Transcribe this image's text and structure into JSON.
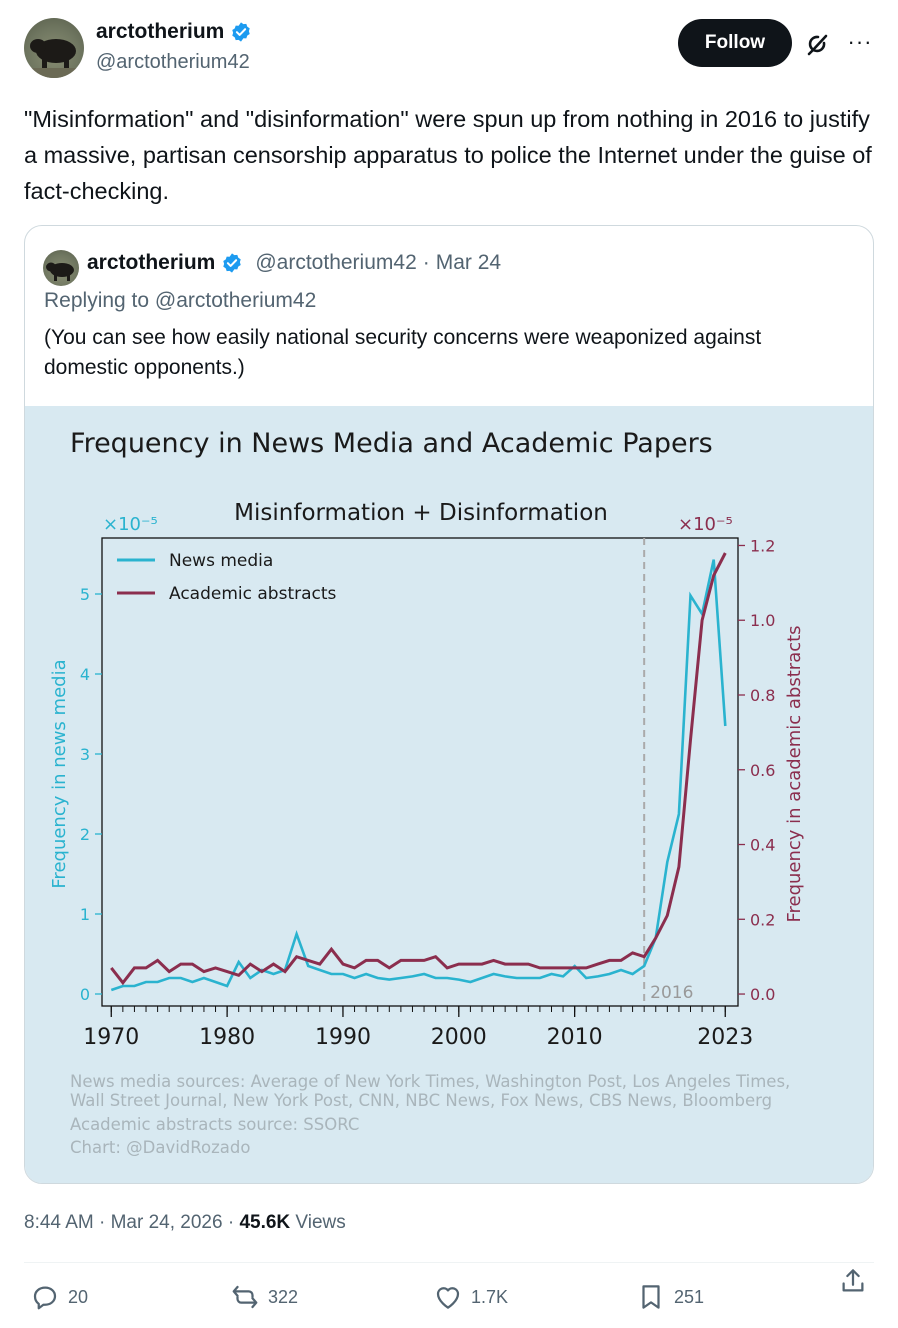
{
  "author": {
    "display_name": "arctotherium",
    "handle": "@arctotherium42"
  },
  "follow_label": "Follow",
  "more_label": "···",
  "tweet_text": "\"Misinformation\" and \"disinformation\" were spun up from nothing in 2016 to justify a massive, partisan censorship apparatus to police the Internet under the guise of fact-checking.",
  "quote": {
    "display_name": "arctotherium",
    "handle": "@arctotherium42",
    "sep": "·",
    "date": "Mar 24",
    "replying_to": "Replying to @arctotherium42",
    "text": "(You can see how easily national security concerns were weaponized against domestic opponents.)"
  },
  "chart_data": {
    "type": "line",
    "title": "Frequency in News Media and Academic Papers",
    "subtitle": "Misinformation + Disinformation",
    "left_multiplier": "×10⁻⁵",
    "right_multiplier": "×10⁻⁵",
    "ylabel_left": "Frequency in news media",
    "ylabel_right": "Frequency in academic abstracts",
    "ylim_left": [
      -0.15,
      5.7
    ],
    "ylim_right": [
      -0.032,
      1.22
    ],
    "xlim": [
      1969.2,
      2024.1
    ],
    "yticks_left": [
      0,
      1,
      2,
      3,
      4,
      5
    ],
    "yticks_right": [
      "0.0",
      "0.2",
      "0.4",
      "0.6",
      "0.8",
      "1.0",
      "1.2"
    ],
    "xticks": [
      1970,
      1980,
      1990,
      2000,
      2010,
      2023
    ],
    "legend": [
      "News media",
      "Academic abstracts"
    ],
    "legend_position": "top-left",
    "vline": {
      "x": 2016,
      "label": "2016"
    },
    "colors": {
      "news": "#2ab3cf",
      "academic": "#8b2e4e",
      "background": "#d8e9f1"
    },
    "x": [
      1970,
      1971,
      1972,
      1973,
      1974,
      1975,
      1976,
      1977,
      1978,
      1979,
      1980,
      1981,
      1982,
      1983,
      1984,
      1985,
      1986,
      1987,
      1988,
      1989,
      1990,
      1991,
      1992,
      1993,
      1994,
      1995,
      1996,
      1997,
      1998,
      1999,
      2000,
      2001,
      2002,
      2003,
      2004,
      2005,
      2006,
      2007,
      2008,
      2009,
      2010,
      2011,
      2012,
      2013,
      2014,
      2015,
      2016,
      2017,
      2018,
      2019,
      2020,
      2021,
      2022,
      2023
    ],
    "series": [
      {
        "name": "News media",
        "axis": "left",
        "values": [
          0.05,
          0.1,
          0.1,
          0.15,
          0.15,
          0.2,
          0.2,
          0.15,
          0.2,
          0.15,
          0.1,
          0.4,
          0.2,
          0.3,
          0.25,
          0.3,
          0.75,
          0.35,
          0.3,
          0.25,
          0.25,
          0.2,
          0.25,
          0.2,
          0.18,
          0.2,
          0.22,
          0.25,
          0.2,
          0.2,
          0.18,
          0.15,
          0.2,
          0.25,
          0.22,
          0.2,
          0.2,
          0.2,
          0.25,
          0.22,
          0.35,
          0.2,
          0.22,
          0.25,
          0.3,
          0.25,
          0.35,
          0.7,
          1.65,
          2.25,
          4.98,
          4.75,
          5.43,
          3.35
        ]
      },
      {
        "name": "Academic abstracts",
        "axis": "right",
        "values": [
          0.07,
          0.03,
          0.07,
          0.07,
          0.09,
          0.06,
          0.08,
          0.08,
          0.06,
          0.07,
          0.06,
          0.05,
          0.08,
          0.06,
          0.08,
          0.06,
          0.1,
          0.09,
          0.08,
          0.12,
          0.08,
          0.07,
          0.09,
          0.09,
          0.07,
          0.09,
          0.09,
          0.09,
          0.1,
          0.07,
          0.08,
          0.08,
          0.08,
          0.09,
          0.08,
          0.08,
          0.08,
          0.07,
          0.07,
          0.07,
          0.07,
          0.07,
          0.08,
          0.09,
          0.09,
          0.11,
          0.1,
          0.15,
          0.21,
          0.34,
          0.68,
          1.0,
          1.12,
          1.18
        ]
      }
    ],
    "footnote": [
      "News media sources: Average of New York Times, Washington Post, Los Angeles Times,",
      "Wall Street Journal, New York Post, CNN, NBC News, Fox News, CBS News, Bloomberg",
      "Academic abstracts source: SSORC",
      "Chart: @DavidRozado"
    ]
  },
  "footer": {
    "time": "8:44 AM · Mar 24, 2026 · ",
    "views_count": "45.6K",
    "views_label": " Views"
  },
  "actions": {
    "replies": "20",
    "reposts": "322",
    "likes": "1.7K",
    "bookmarks": "251"
  }
}
